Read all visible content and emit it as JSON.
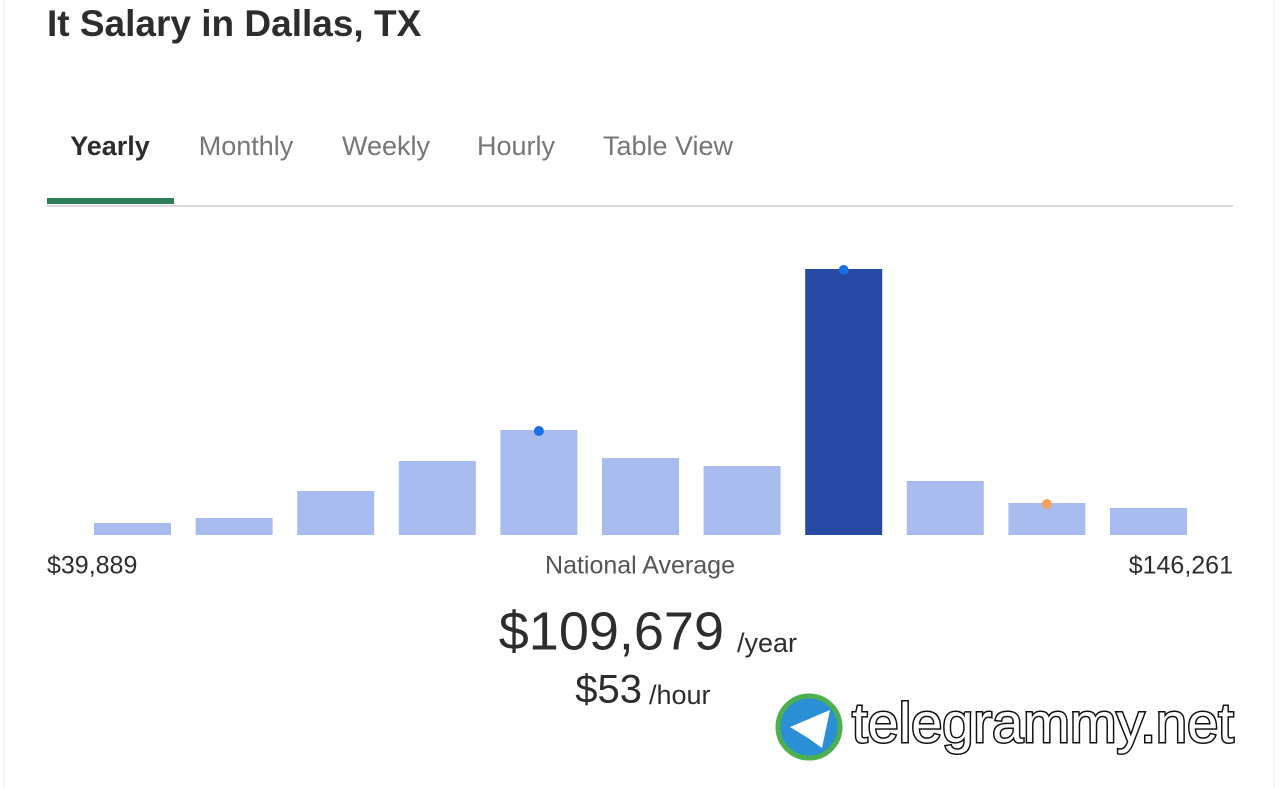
{
  "header": {
    "title": "It Salary in Dallas, TX"
  },
  "tabs": {
    "items": [
      "Yearly",
      "Monthly",
      "Weekly",
      "Hourly",
      "Table View"
    ],
    "active": 0
  },
  "chart_data": {
    "type": "bar",
    "values": [
      12,
      17,
      44,
      74,
      105,
      77,
      69,
      266,
      54,
      32,
      27
    ],
    "color": "#a9bcf0",
    "highlight": 7,
    "highlight_color": "#2748a3",
    "markers": [
      {
        "bar": 4,
        "color": "#1a6fe0"
      },
      {
        "bar": 7,
        "color": "#1a6fe0"
      },
      {
        "bar": 9,
        "color": "#f4a259"
      }
    ],
    "min_label": "$39,889",
    "center_label": "National Average",
    "max_label": "$146,261"
  },
  "summary": {
    "yearly": "$109,679",
    "yearly_unit": "/year",
    "hourly": "$53",
    "hourly_unit": "/hour"
  },
  "watermark": "telegrammy.net"
}
